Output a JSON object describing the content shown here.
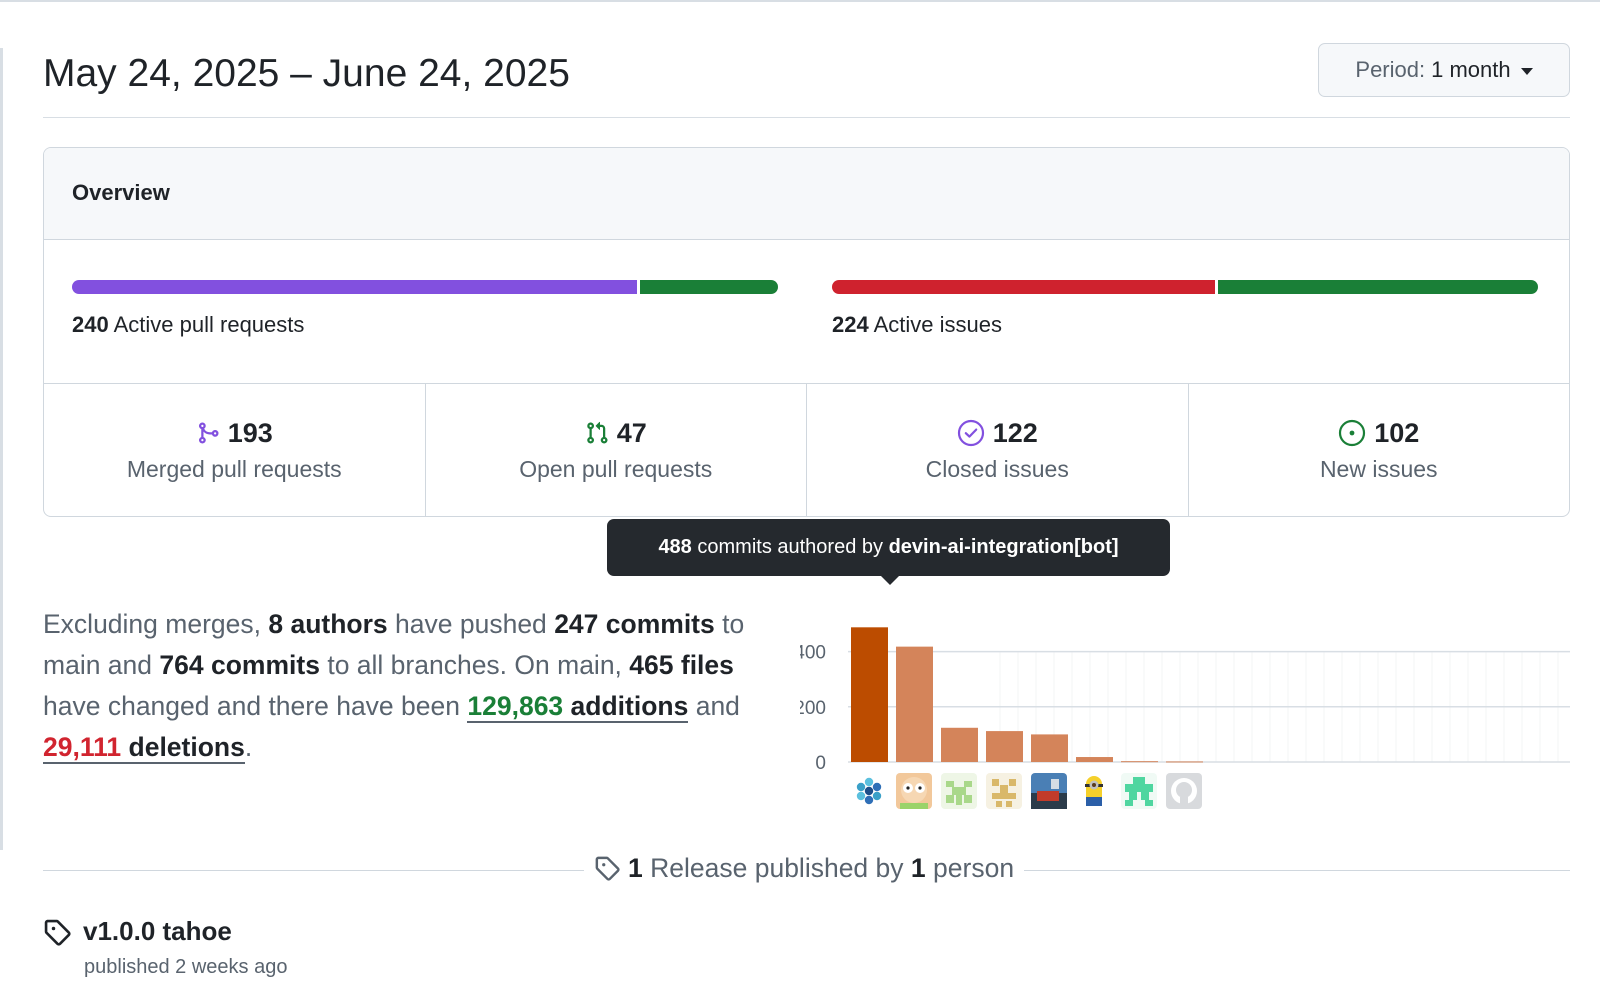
{
  "header": {
    "title": "May 24, 2025 – June 24, 2025",
    "period_label": "Period:",
    "period_value": "1 month"
  },
  "overview": {
    "heading": "Overview",
    "pull_requests": {
      "count": "240",
      "label": "Active pull requests",
      "merged_fraction": 0.804,
      "open_fraction": 0.196
    },
    "issues": {
      "count": "224",
      "label": "Active issues",
      "closed_fraction": 0.545,
      "new_fraction": 0.455
    },
    "stats": [
      {
        "value": "193",
        "label": "Merged pull requests",
        "icon": "git-merge-icon"
      },
      {
        "value": "47",
        "label": "Open pull requests",
        "icon": "git-pull-request-icon"
      },
      {
        "value": "122",
        "label": "Closed issues",
        "icon": "issue-closed-icon"
      },
      {
        "value": "102",
        "label": "New issues",
        "icon": "issue-opened-icon"
      }
    ],
    "colors": {
      "merged": "#8250df",
      "open_pr": "#1a7f37",
      "closed_issue": "#cf222e",
      "new_issue": "#1a7f37"
    }
  },
  "summary": {
    "p1": "Excluding merges,",
    "authors": "8 authors",
    "p2": "have pushed",
    "commits_main": "247 commits",
    "p3": "to main and",
    "commits_all": "764 commits",
    "p4": "to all branches. On main,",
    "files": "465 files",
    "p5": "have changed and there have been",
    "additions_num": "129,863",
    "additions_word": "additions",
    "p6": "and",
    "deletions_num": "29,111",
    "deletions_word": "deletions",
    "p7": "."
  },
  "tooltip": {
    "count_text": "488",
    "middle": "commits authored by",
    "author": "devin-ai-integration[bot]"
  },
  "chart_data": {
    "type": "bar",
    "categories": [
      "",
      "",
      "",
      "",
      "",
      "",
      "",
      ""
    ],
    "values": [
      488,
      418,
      124,
      112,
      100,
      18,
      3,
      2
    ],
    "highlighted_index": 0,
    "ylim": [
      0,
      500
    ],
    "yticks": [
      0,
      200,
      400
    ],
    "grid": true,
    "colors": {
      "bar": "#d4845a",
      "highlight": "#bc4c00",
      "grid": "#d8dee4"
    }
  },
  "releases": {
    "count": "1",
    "middle": "Release published by",
    "people_count": "1",
    "people_word": "person",
    "item": {
      "tag": "v1.0.0 tahoe",
      "meta": "published 2 weeks ago"
    }
  }
}
